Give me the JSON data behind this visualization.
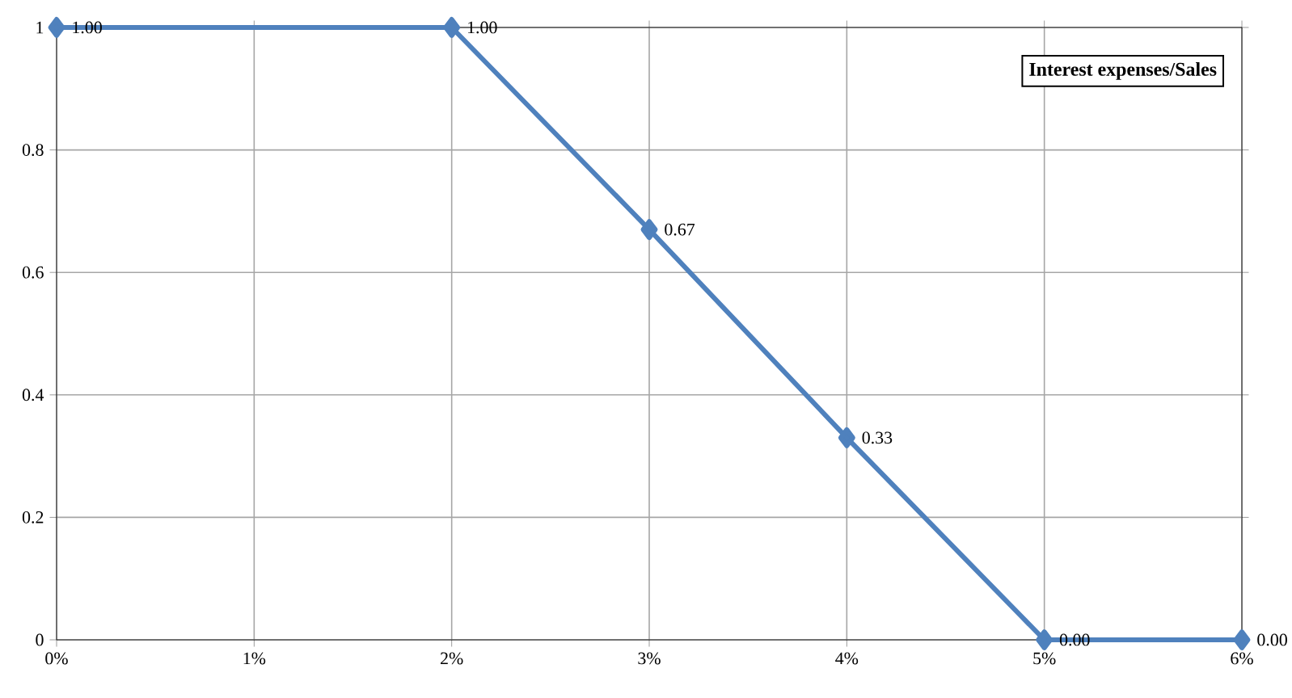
{
  "chart_data": {
    "type": "line",
    "title": "Interest expenses/Sales",
    "x": [
      0,
      2,
      3,
      4,
      5,
      6
    ],
    "series": [
      {
        "color": "#4f81bd",
        "values": [
          1,
          1,
          0.67,
          0.33,
          0,
          0
        ],
        "value_labels": [
          "1.00",
          "1.00",
          "0.67",
          "0.33",
          "0.00",
          "0.00"
        ]
      }
    ],
    "xlim": [
      0,
      6
    ],
    "xticks": [
      {
        "value": 0,
        "label": "0%"
      },
      {
        "value": 1,
        "label": "1%"
      },
      {
        "value": 2,
        "label": "2%"
      },
      {
        "value": 3,
        "label": "3%"
      },
      {
        "value": 4,
        "label": "4%"
      },
      {
        "value": 5,
        "label": "5%"
      },
      {
        "value": 6,
        "label": "6%"
      }
    ],
    "ylim": [
      0,
      1
    ],
    "yticks": [
      0,
      0.2,
      0.4,
      0.6,
      0.8,
      1
    ],
    "grid": true,
    "marker": "diamond",
    "line_style": "solid"
  }
}
